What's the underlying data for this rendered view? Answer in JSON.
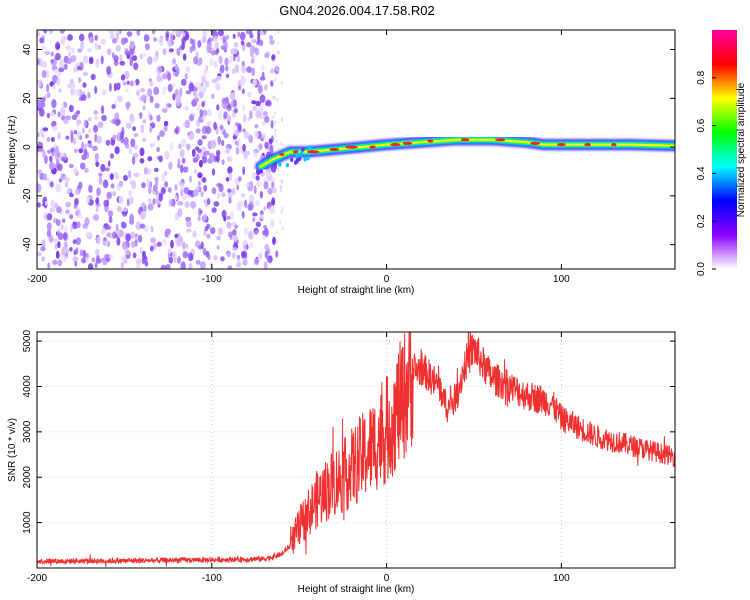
{
  "title": "GN04.2026.004.17.58.R02",
  "chart_data": [
    {
      "type": "heatmap",
      "title": "GN04.2026.004.17.58.R02",
      "xlabel": "Height of straight line (km)",
      "ylabel": "Frequency (Hz)",
      "xlim": [
        -200,
        165
      ],
      "ylim": [
        -50,
        48
      ],
      "xticks": [
        -200,
        -100,
        0,
        100
      ],
      "yticks": [
        -40,
        -20,
        0,
        20,
        40
      ],
      "noise_region_x": [
        -200,
        -65
      ],
      "signal_track": {
        "x": [
          -72,
          -65,
          -55,
          -45,
          -30,
          -15,
          0,
          20,
          40,
          60,
          80,
          90,
          100,
          120,
          140,
          165
        ],
        "freq_hz": [
          -8,
          -5,
          -2,
          -2,
          -1,
          0,
          1,
          2,
          3,
          3,
          2,
          1,
          1,
          1,
          1,
          0.5
        ]
      },
      "colorbar": {
        "label": "Normalized spectral amplitude",
        "ticks": [
          "0.0",
          "0.2",
          "0.4",
          "0.6",
          "0.8"
        ],
        "range": [
          0,
          1
        ],
        "colors": [
          "#ffffff",
          "#8b00ff",
          "#0000ff",
          "#00ffff",
          "#00ff00",
          "#ffff00",
          "#ff0000",
          "#ff00a0"
        ]
      }
    },
    {
      "type": "line",
      "xlabel": "Height of straight line (km)",
      "ylabel": "SNR (10 * v/v)",
      "xlim": [
        -200,
        165
      ],
      "ylim": [
        0,
        5200
      ],
      "xticks": [
        -200,
        -100,
        0,
        100
      ],
      "yticks": [
        1000,
        2000,
        3000,
        4000,
        5000
      ],
      "color": "#ee3030",
      "series": [
        {
          "name": "SNR",
          "x": [
            -200,
            -150,
            -100,
            -70,
            -60,
            -55,
            -50,
            -45,
            -40,
            -35,
            -30,
            -25,
            -20,
            -15,
            -10,
            -5,
            0,
            5,
            10,
            15,
            20,
            25,
            30,
            35,
            40,
            45,
            50,
            55,
            60,
            65,
            70,
            75,
            80,
            85,
            90,
            95,
            100,
            110,
            120,
            130,
            140,
            150,
            160,
            165
          ],
          "values": [
            150,
            160,
            180,
            200,
            300,
            500,
            900,
            1200,
            1500,
            1700,
            1900,
            2000,
            2200,
            2400,
            2600,
            2800,
            3000,
            3400,
            3800,
            4300,
            4400,
            4200,
            4000,
            3500,
            3800,
            4500,
            4850,
            4500,
            4200,
            4100,
            4000,
            3900,
            3800,
            3750,
            3700,
            3600,
            3300,
            3100,
            2900,
            2800,
            2700,
            2600,
            2500,
            2450
          ]
        }
      ]
    }
  ]
}
